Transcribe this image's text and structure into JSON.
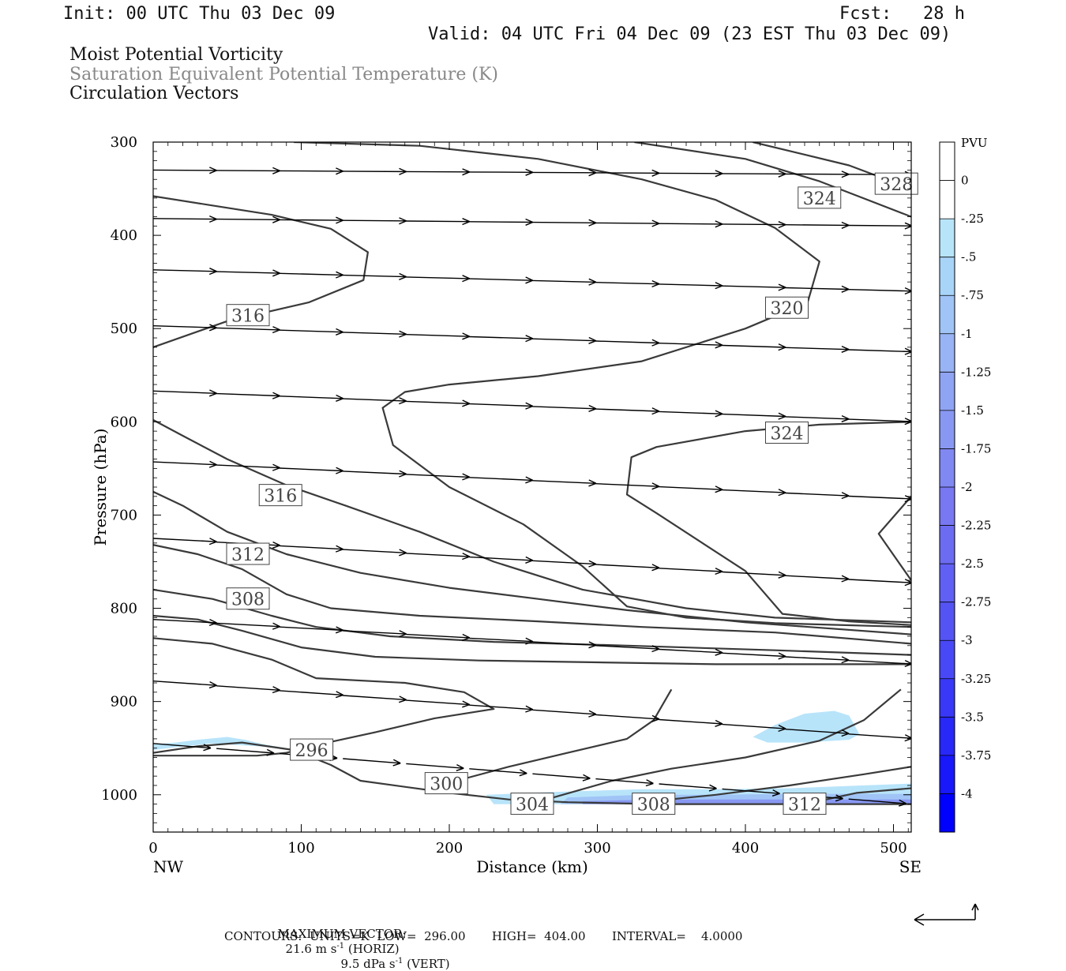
{
  "header": {
    "init": "Init: 00 UTC Thu 03 Dec 09",
    "fcst": "Fcst:   28 h",
    "valid": "Valid: 04 UTC Fri 04 Dec 09 (23 EST Thu 03 Dec 09)"
  },
  "fields": [
    {
      "text": "Moist Potential Vorticity",
      "color": "#111111"
    },
    {
      "text": "Saturation Equivalent Potential Temperature (K)",
      "color": "#888888"
    },
    {
      "text": "Circulation Vectors",
      "color": "#111111"
    }
  ],
  "footer": {
    "max_vector_label": "MAXIMUM VECTOR:",
    "horiz_value": "21.6 m s",
    "horiz_tag": " (HORIZ)",
    "vert_value": "9.5 dPa s",
    "vert_tag": " (VERT)",
    "exponent": "-1",
    "contours": "CONTOURS:  UNITS=K  LOW=  296.00       HIGH=  404.00       INTERVAL=    4.0000"
  },
  "chart_data": {
    "type": "cross-section",
    "xlabel": "Distance (km)",
    "ylabel": "Pressure (hPa)",
    "xlim": [
      0,
      512
    ],
    "ylim": [
      1040,
      300
    ],
    "x_ticks": [
      0,
      100,
      200,
      300,
      400,
      500
    ],
    "y_ticks": [
      300,
      400,
      500,
      600,
      700,
      800,
      900,
      1000
    ],
    "x_end_labels": {
      "left": "NW",
      "right": "SE"
    },
    "colorbar": {
      "units": "PVU",
      "labels": [
        "0",
        "-.25",
        "-.5",
        "-.75",
        "-1",
        "-1.25",
        "-1.5",
        "-1.75",
        "-2",
        "-2.25",
        "-2.5",
        "-2.75",
        "-3",
        "-3.25",
        "-3.5",
        "-3.75",
        "-4"
      ],
      "colors": [
        "#ffffff",
        "#b8e4fa",
        "#a8d4f8",
        "#a0c4f6",
        "#98b4f4",
        "#90a4f4",
        "#8898f2",
        "#8088f2",
        "#7878f2",
        "#6c6cf2",
        "#6060f4",
        "#5454f4",
        "#4848f6",
        "#3838f6",
        "#2828f8",
        "#1818fa",
        "#0000ff"
      ]
    },
    "pv_regions": [
      {
        "color": "#b8e4fa",
        "points": [
          [
            0,
            946
          ],
          [
            15,
            944
          ],
          [
            30,
            941
          ],
          [
            50,
            938
          ],
          [
            62,
            941
          ],
          [
            75,
            946
          ],
          [
            90,
            950
          ],
          [
            70,
            948
          ],
          [
            40,
            945
          ],
          [
            15,
            949
          ],
          [
            0,
            952
          ]
        ]
      },
      {
        "color": "#b8e4fa",
        "points": [
          [
            405,
            938
          ],
          [
            420,
            925
          ],
          [
            440,
            913
          ],
          [
            460,
            910
          ],
          [
            470,
            915
          ],
          [
            477,
            935
          ],
          [
            470,
            941
          ],
          [
            440,
            944
          ],
          [
            415,
            944
          ]
        ]
      },
      {
        "color": "#b8e4fa",
        "points": [
          [
            225,
            1000
          ],
          [
            270,
            997
          ],
          [
            330,
            994
          ],
          [
            380,
            994
          ],
          [
            430,
            993
          ],
          [
            480,
            990
          ],
          [
            512,
            988
          ],
          [
            512,
            1010
          ],
          [
            230,
            1010
          ]
        ]
      },
      {
        "color": "#a0c4f6",
        "points": [
          [
            280,
            1003
          ],
          [
            330,
            1000
          ],
          [
            380,
            1000
          ],
          [
            430,
            999
          ],
          [
            470,
            999
          ],
          [
            512,
            999
          ],
          [
            512,
            1010
          ],
          [
            275,
            1010
          ]
        ]
      },
      {
        "color": "#8898f2",
        "points": [
          [
            290,
            1007
          ],
          [
            340,
            1005
          ],
          [
            400,
            1005
          ],
          [
            470,
            1005
          ],
          [
            512,
            1005
          ],
          [
            512,
            1010
          ],
          [
            290,
            1010
          ]
        ]
      }
    ],
    "contours": [
      {
        "points": [
          [
            0,
            358
          ],
          [
            40,
            368
          ],
          [
            80,
            378
          ],
          [
            120,
            393
          ],
          [
            145,
            418
          ],
          [
            142,
            448
          ],
          [
            105,
            472
          ],
          [
            50,
            492
          ],
          [
            0,
            520
          ]
        ]
      },
      {
        "points": [
          [
            95,
            300
          ],
          [
            180,
            304
          ],
          [
            260,
            318
          ],
          [
            330,
            340
          ],
          [
            380,
            362
          ],
          [
            420,
            392
          ],
          [
            450,
            428
          ],
          [
            442,
            472
          ],
          [
            400,
            500
          ],
          [
            330,
            535
          ],
          [
            260,
            551
          ],
          [
            200,
            560
          ],
          [
            170,
            568
          ],
          [
            155,
            585
          ],
          [
            162,
            625
          ],
          [
            200,
            670
          ],
          [
            250,
            710
          ],
          [
            290,
            755
          ],
          [
            320,
            798
          ],
          [
            360,
            810
          ],
          [
            420,
            816
          ],
          [
            512,
            820
          ]
        ]
      },
      {
        "points": [
          [
            325,
            300
          ],
          [
            400,
            318
          ],
          [
            450,
            342
          ],
          [
            512,
            380
          ]
        ]
      },
      {
        "points": [
          [
            405,
            300
          ],
          [
            470,
            325
          ],
          [
            512,
            350
          ]
        ]
      },
      {
        "points": [
          [
            512,
            600
          ],
          [
            450,
            603
          ],
          [
            400,
            610
          ],
          [
            340,
            627
          ],
          [
            323,
            638
          ],
          [
            320,
            678
          ],
          [
            340,
            698
          ],
          [
            400,
            760
          ],
          [
            425,
            806
          ],
          [
            470,
            814
          ],
          [
            512,
            818
          ]
        ]
      },
      {
        "points": [
          [
            512,
            680
          ],
          [
            490,
            720
          ],
          [
            512,
            770
          ]
        ]
      },
      {
        "points": [
          [
            0,
            598
          ],
          [
            20,
            615
          ],
          [
            50,
            640
          ],
          [
            90,
            668
          ],
          [
            130,
            690
          ],
          [
            180,
            718
          ],
          [
            230,
            750
          ],
          [
            290,
            780
          ],
          [
            360,
            800
          ],
          [
            420,
            810
          ],
          [
            512,
            815
          ]
        ]
      },
      {
        "points": [
          [
            0,
            675
          ],
          [
            20,
            690
          ],
          [
            50,
            718
          ],
          [
            90,
            742
          ],
          [
            140,
            762
          ],
          [
            200,
            778
          ],
          [
            260,
            790
          ],
          [
            320,
            802
          ],
          [
            400,
            815
          ],
          [
            512,
            828
          ]
        ]
      },
      {
        "points": [
          [
            0,
            732
          ],
          [
            30,
            742
          ],
          [
            60,
            758
          ],
          [
            90,
            785
          ],
          [
            120,
            800
          ],
          [
            180,
            808
          ],
          [
            260,
            814
          ],
          [
            330,
            820
          ],
          [
            420,
            826
          ],
          [
            512,
            838
          ]
        ]
      },
      {
        "points": [
          [
            0,
            780
          ],
          [
            40,
            790
          ],
          [
            80,
            808
          ],
          [
            110,
            820
          ],
          [
            160,
            830
          ],
          [
            230,
            836
          ],
          [
            320,
            840
          ],
          [
            420,
            845
          ],
          [
            512,
            850
          ]
        ]
      },
      {
        "points": [
          [
            0,
            808
          ],
          [
            30,
            812
          ],
          [
            60,
            824
          ],
          [
            100,
            842
          ],
          [
            150,
            852
          ],
          [
            220,
            856
          ],
          [
            300,
            858
          ],
          [
            380,
            860
          ],
          [
            512,
            860
          ]
        ]
      },
      {
        "points": [
          [
            0,
            832
          ],
          [
            40,
            838
          ],
          [
            80,
            855
          ],
          [
            110,
            875
          ],
          [
            170,
            880
          ],
          [
            210,
            890
          ],
          [
            230,
            908
          ],
          [
            190,
            918
          ],
          [
            150,
            933
          ],
          [
            115,
            945
          ],
          [
            90,
            955
          ],
          [
            70,
            958
          ],
          [
            0,
            958
          ]
        ]
      },
      {
        "points": [
          [
            0,
            955
          ],
          [
            30,
            948
          ],
          [
            60,
            944
          ],
          [
            95,
            952
          ],
          [
            120,
            968
          ],
          [
            140,
            985
          ],
          [
            200,
            998
          ],
          [
            240,
            1005
          ],
          [
            280,
            1008
          ],
          [
            340,
            1010
          ],
          [
            420,
            1010
          ],
          [
            512,
            1010
          ]
        ]
      },
      {
        "points": [
          [
            205,
            985
          ],
          [
            240,
            970
          ],
          [
            280,
            955
          ],
          [
            320,
            940
          ],
          [
            338,
            920
          ],
          [
            350,
            887
          ]
        ]
      },
      {
        "points": [
          [
            270,
            1003
          ],
          [
            310,
            985
          ],
          [
            350,
            972
          ],
          [
            400,
            960
          ],
          [
            450,
            942
          ],
          [
            480,
            920
          ],
          [
            505,
            887
          ]
        ]
      },
      {
        "points": [
          [
            330,
            1008
          ],
          [
            380,
            1000
          ],
          [
            430,
            990
          ],
          [
            480,
            978
          ],
          [
            512,
            970
          ]
        ]
      },
      {
        "points": [
          [
            440,
            1010
          ],
          [
            475,
            998
          ],
          [
            512,
            993
          ]
        ]
      }
    ],
    "contour_labels": [
      {
        "text": "328",
        "x": 502,
        "y": 345
      },
      {
        "text": "324",
        "x": 450,
        "y": 360
      },
      {
        "text": "320",
        "x": 428,
        "y": 478
      },
      {
        "text": "316",
        "x": 64,
        "y": 486
      },
      {
        "text": "324",
        "x": 428,
        "y": 612
      },
      {
        "text": "316",
        "x": 86,
        "y": 679
      },
      {
        "text": "312",
        "x": 64,
        "y": 742
      },
      {
        "text": "308",
        "x": 64,
        "y": 790
      },
      {
        "text": "296",
        "x": 107,
        "y": 952
      },
      {
        "text": "300",
        "x": 198,
        "y": 988
      },
      {
        "text": "304",
        "x": 256,
        "y": 1010
      },
      {
        "text": "308",
        "x": 338,
        "y": 1010
      },
      {
        "text": "312",
        "x": 440,
        "y": 1010
      }
    ],
    "vector_rows": [
      {
        "p0": 330,
        "p1": 335,
        "dx": 28
      },
      {
        "p0": 382,
        "p1": 390,
        "dx": 28
      },
      {
        "p0": 437,
        "p1": 460,
        "dx": 28
      },
      {
        "p0": 497,
        "p1": 525,
        "dx": 28
      },
      {
        "p0": 567,
        "p1": 600,
        "dx": 28
      },
      {
        "p0": 643,
        "p1": 683,
        "dx": 28
      },
      {
        "p0": 725,
        "p1": 773,
        "dx": 28
      },
      {
        "p0": 812,
        "p1": 860,
        "dx": 28
      },
      {
        "p0": 878,
        "p1": 940,
        "dx": 28
      },
      {
        "p0": 945,
        "p1": 1010,
        "dx": 24
      }
    ]
  }
}
